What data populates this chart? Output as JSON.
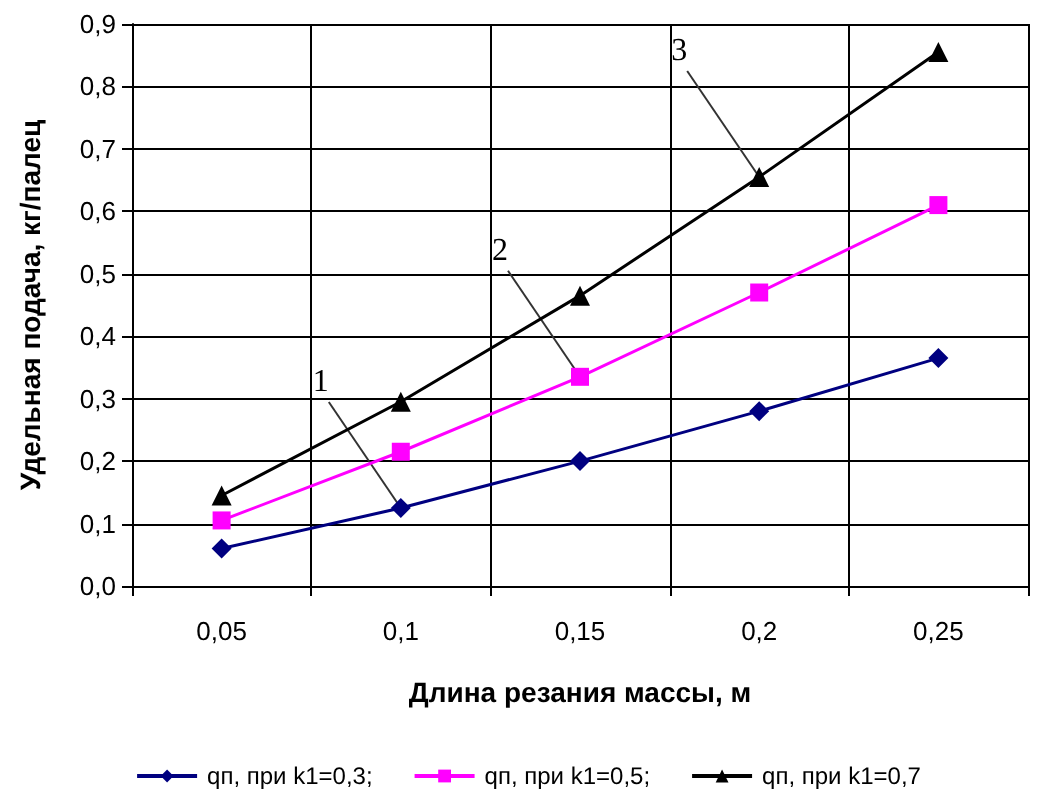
{
  "chart_data": {
    "type": "line",
    "xlabel": "Длина резания массы, м",
    "ylabel": "Удельная подача, кг/палец",
    "categories": [
      "0,05",
      "0,1",
      "0,15",
      "0,2",
      "0,25"
    ],
    "series": [
      {
        "name": "qп, при k1=0,3;",
        "color": "#000080",
        "marker": "diamond",
        "values": [
          0.06,
          0.125,
          0.2,
          0.28,
          0.365
        ]
      },
      {
        "name": "qп, при k1=0,5;",
        "color": "#ff00ff",
        "marker": "square",
        "values": [
          0.105,
          0.215,
          0.335,
          0.47,
          0.61
        ]
      },
      {
        "name": "qп, при k1=0,7",
        "color": "#000000",
        "marker": "triangle",
        "values": [
          0.145,
          0.295,
          0.465,
          0.655,
          0.855
        ]
      }
    ],
    "ylim": [
      0,
      0.9
    ],
    "yticks": [
      {
        "value": 0,
        "label": "0,0"
      },
      {
        "value": 0.1,
        "label": "0,1"
      },
      {
        "value": 0.2,
        "label": "0,2"
      },
      {
        "value": 0.3,
        "label": "0,3"
      },
      {
        "value": 0.4,
        "label": "0,4"
      },
      {
        "value": 0.5,
        "label": "0,5"
      },
      {
        "value": 0.6,
        "label": "0,6"
      },
      {
        "value": 0.7,
        "label": "0,7"
      },
      {
        "value": 0.8,
        "label": "0,8"
      },
      {
        "value": 0.9,
        "label": "0,9"
      }
    ],
    "annotations": [
      {
        "text": "1",
        "x": "0,1",
        "y": 0.125
      },
      {
        "text": "2",
        "x": "0,15",
        "y": 0.335
      },
      {
        "text": "3",
        "x": "0,2",
        "y": 0.655
      }
    ],
    "grid": true,
    "legend": "bottom",
    "line_style": "solid"
  }
}
